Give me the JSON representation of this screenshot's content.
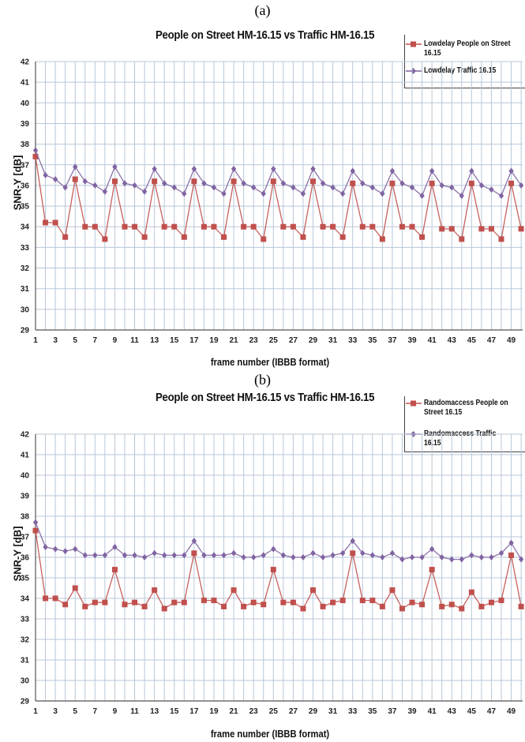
{
  "chart_data": [
    {
      "panel_label": "(a)",
      "type": "line",
      "title": "People on Street HM-16.15 vs Traffic HM-16.15",
      "xlabel": "frame number (IBBB format)",
      "ylabel": "SNR-Y [dB]",
      "ylim": [
        29,
        42
      ],
      "yticks": [
        "29",
        "30",
        "31",
        "32",
        "33",
        "34",
        "35",
        "36",
        "37",
        "38",
        "39",
        "40",
        "41",
        "42"
      ],
      "xticks": [
        "1",
        "3",
        "5",
        "7",
        "9",
        "11",
        "13",
        "15",
        "17",
        "19",
        "21",
        "23",
        "25",
        "27",
        "29",
        "31",
        "33",
        "35",
        "37",
        "39",
        "41",
        "43",
        "45",
        "47",
        "49"
      ],
      "grid": true,
      "legend_position": "top-right",
      "x": [
        1,
        2,
        3,
        4,
        5,
        6,
        7,
        8,
        9,
        10,
        11,
        12,
        13,
        14,
        15,
        16,
        17,
        18,
        19,
        20,
        21,
        22,
        23,
        24,
        25,
        26,
        27,
        28,
        29,
        30,
        31,
        32,
        33,
        34,
        35,
        36,
        37,
        38,
        39,
        40,
        41,
        42,
        43,
        44,
        45,
        46,
        47,
        48,
        49,
        50
      ],
      "series": [
        {
          "name": "Lowdelay People on Street 16.15",
          "color": "#c0504d",
          "marker": "square",
          "values": [
            37.4,
            34.2,
            34.2,
            33.5,
            36.3,
            34.0,
            34.0,
            33.4,
            36.2,
            34.0,
            34.0,
            33.5,
            36.2,
            34.0,
            34.0,
            33.5,
            36.2,
            34.0,
            34.0,
            33.5,
            36.2,
            34.0,
            34.0,
            33.4,
            36.2,
            34.0,
            34.0,
            33.5,
            36.2,
            34.0,
            34.0,
            33.5,
            36.1,
            34.0,
            34.0,
            33.4,
            36.1,
            34.0,
            34.0,
            33.5,
            36.1,
            33.9,
            33.9,
            33.4,
            36.1,
            33.9,
            33.9,
            33.4,
            36.1,
            33.9
          ]
        },
        {
          "name": "Lowdelay Traffic 16.15",
          "color": "#8064a2",
          "marker": "diamond",
          "values": [
            37.7,
            36.5,
            36.3,
            35.9,
            36.9,
            36.2,
            36.0,
            35.7,
            36.9,
            36.1,
            36.0,
            35.7,
            36.8,
            36.1,
            35.9,
            35.6,
            36.8,
            36.1,
            35.9,
            35.6,
            36.8,
            36.1,
            35.9,
            35.6,
            36.8,
            36.1,
            35.9,
            35.6,
            36.8,
            36.1,
            35.9,
            35.6,
            36.7,
            36.1,
            35.9,
            35.6,
            36.7,
            36.1,
            35.9,
            35.5,
            36.7,
            36.0,
            35.9,
            35.5,
            36.7,
            36.0,
            35.8,
            35.5,
            36.7,
            36.0
          ]
        }
      ]
    },
    {
      "panel_label": "(b)",
      "type": "line",
      "title": "People on Street HM-16.15 vs Traffic HM-16.15",
      "xlabel": "frame number (IBBB format)",
      "ylabel": "SNR-Y [dB]",
      "ylim": [
        29,
        42
      ],
      "yticks": [
        "29",
        "30",
        "31",
        "32",
        "33",
        "34",
        "35",
        "36",
        "37",
        "38",
        "39",
        "40",
        "41",
        "42"
      ],
      "xticks": [
        "1",
        "3",
        "5",
        "7",
        "9",
        "11",
        "13",
        "15",
        "17",
        "19",
        "21",
        "23",
        "25",
        "27",
        "29",
        "31",
        "33",
        "35",
        "37",
        "39",
        "41",
        "43",
        "45",
        "47",
        "49"
      ],
      "grid": true,
      "legend_position": "top-right",
      "x": [
        1,
        2,
        3,
        4,
        5,
        6,
        7,
        8,
        9,
        10,
        11,
        12,
        13,
        14,
        15,
        16,
        17,
        18,
        19,
        20,
        21,
        22,
        23,
        24,
        25,
        26,
        27,
        28,
        29,
        30,
        31,
        32,
        33,
        34,
        35,
        36,
        37,
        38,
        39,
        40,
        41,
        42,
        43,
        44,
        45,
        46,
        47,
        48,
        49,
        50
      ],
      "series": [
        {
          "name": "Randomaccess People on Street 16.15",
          "color": "#c0504d",
          "marker": "square",
          "values": [
            37.3,
            34.0,
            34.0,
            33.7,
            34.5,
            33.6,
            33.8,
            33.8,
            35.4,
            33.7,
            33.8,
            33.6,
            34.4,
            33.5,
            33.8,
            33.8,
            36.2,
            33.9,
            33.9,
            33.6,
            34.4,
            33.6,
            33.8,
            33.7,
            35.4,
            33.8,
            33.8,
            33.5,
            34.4,
            33.6,
            33.8,
            33.9,
            36.2,
            33.9,
            33.9,
            33.6,
            34.4,
            33.5,
            33.8,
            33.7,
            35.4,
            33.6,
            33.7,
            33.5,
            34.3,
            33.6,
            33.8,
            33.9,
            36.1,
            33.6
          ]
        },
        {
          "name": "Randomaccess Traffic 16.15",
          "color": "#8064a2",
          "marker": "diamond",
          "values": [
            37.7,
            36.5,
            36.4,
            36.3,
            36.4,
            36.1,
            36.1,
            36.1,
            36.5,
            36.1,
            36.1,
            36.0,
            36.2,
            36.1,
            36.1,
            36.1,
            36.8,
            36.1,
            36.1,
            36.1,
            36.2,
            36.0,
            36.0,
            36.1,
            36.4,
            36.1,
            36.0,
            36.0,
            36.2,
            36.0,
            36.1,
            36.2,
            36.8,
            36.2,
            36.1,
            36.0,
            36.2,
            35.9,
            36.0,
            36.0,
            36.4,
            36.0,
            35.9,
            35.9,
            36.1,
            36.0,
            36.0,
            36.2,
            36.7,
            35.9
          ]
        }
      ]
    }
  ]
}
